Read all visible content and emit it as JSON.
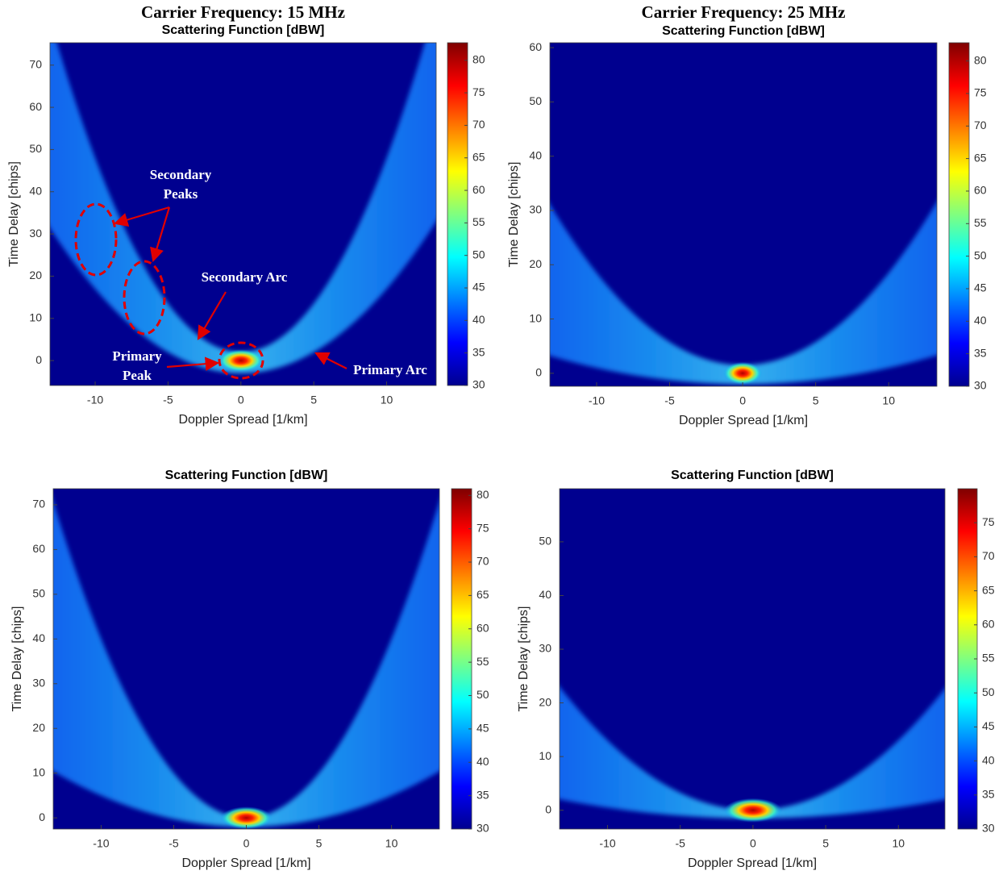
{
  "chart_data": [
    {
      "type": "heatmap",
      "suptitle": "Carrier Frequency:  15 MHz",
      "title": "Scattering Function [dBW]",
      "xlabel": "Doppler Spread [1/km]",
      "ylabel": "Time Delay [chips]",
      "xlim": [
        -13.1,
        13.4
      ],
      "ylim": [
        -5.9,
        75.3
      ],
      "xticks": [
        -10,
        -5,
        0,
        5,
        10
      ],
      "yticks": [
        0,
        10,
        20,
        30,
        40,
        50,
        60,
        70
      ],
      "clim": [
        30,
        82.7
      ],
      "cticks": [
        30,
        35,
        40,
        45,
        50,
        55,
        60,
        65,
        70,
        75,
        80
      ],
      "annotations": [
        "Secondary",
        "Peaks",
        "Secondary Arc",
        "Primary",
        "Peak",
        "Primary Arc"
      ]
    },
    {
      "type": "heatmap",
      "suptitle": "Carrier Frequency:  25 MHz",
      "title": "Scattering Function [dBW]",
      "xlabel": "Doppler Spread [1/km]",
      "ylabel": "Time Delay [chips]",
      "xlim": [
        -13.2,
        13.3
      ],
      "ylim": [
        -2.4,
        60.9
      ],
      "xticks": [
        -10,
        -5,
        0,
        5,
        10
      ],
      "yticks": [
        0,
        10,
        20,
        30,
        40,
        50,
        60
      ],
      "clim": [
        30,
        82.8
      ],
      "cticks": [
        30,
        35,
        40,
        45,
        50,
        55,
        60,
        65,
        70,
        75,
        80
      ]
    },
    {
      "type": "heatmap",
      "title": "Scattering Function [dBW]",
      "xlabel": "Doppler Spread [1/km]",
      "ylabel": "Time Delay [chips]",
      "xlim": [
        -13.3,
        13.3
      ],
      "ylim": [
        -2.5,
        73.6
      ],
      "xticks": [
        -10,
        -5,
        0,
        5,
        10
      ],
      "yticks": [
        0,
        10,
        20,
        30,
        40,
        50,
        60,
        70
      ],
      "clim": [
        30,
        81
      ],
      "cticks": [
        30,
        35,
        40,
        45,
        50,
        55,
        60,
        65,
        70,
        75,
        80
      ]
    },
    {
      "type": "heatmap",
      "title": "Scattering Function [dBW]",
      "xlabel": "Doppler Spread [1/km]",
      "ylabel": "Time Delay [chips]",
      "xlim": [
        -13.3,
        13.2
      ],
      "ylim": [
        -3.5,
        59.9
      ],
      "xticks": [
        -10,
        -5,
        0,
        5,
        10
      ],
      "yticks": [
        0,
        10,
        20,
        30,
        40,
        50
      ],
      "clim": [
        30,
        80
      ],
      "cticks": [
        30,
        35,
        40,
        45,
        50,
        55,
        60,
        65,
        70,
        75
      ]
    }
  ]
}
